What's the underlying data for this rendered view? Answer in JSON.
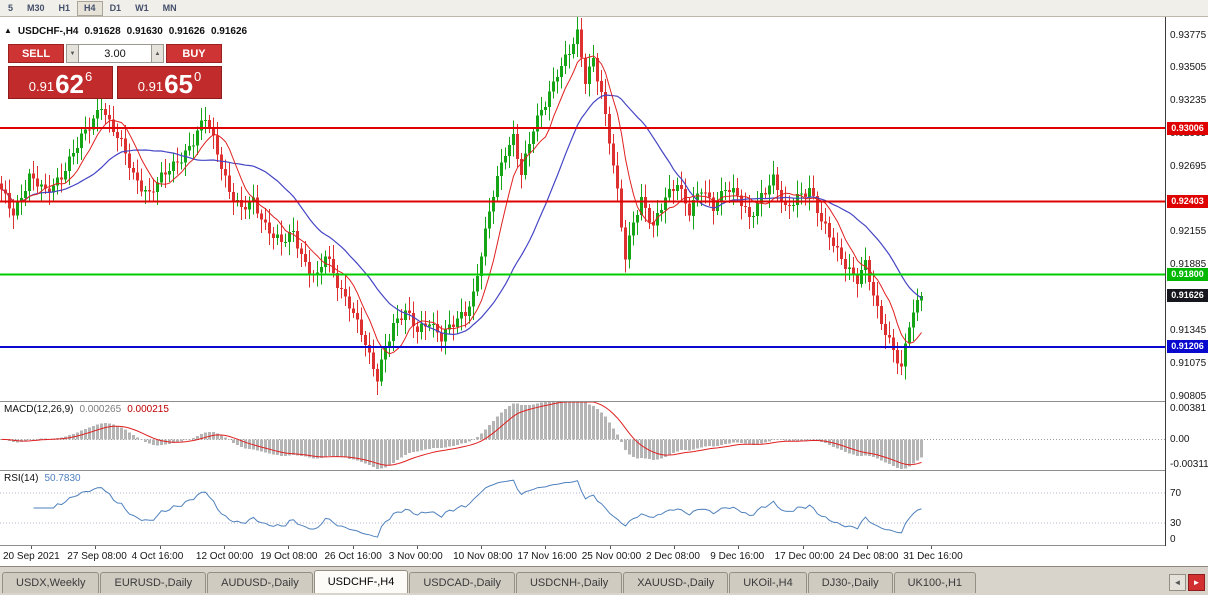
{
  "toolbar": {
    "timeframes": [
      {
        "label": "5",
        "active": false
      },
      {
        "label": "M30",
        "active": false
      },
      {
        "label": "H1",
        "active": false
      },
      {
        "label": "H4",
        "active": true
      },
      {
        "label": "D1",
        "active": false
      },
      {
        "label": "W1",
        "active": false
      },
      {
        "label": "MN",
        "active": false
      }
    ]
  },
  "chart": {
    "title": {
      "marker": "▲",
      "symbol": "USDCHF-,H4",
      "open": "0.91628",
      "high": "0.91630",
      "low": "0.91626",
      "close": "0.91626"
    }
  },
  "trade_panel": {
    "sell_label": "SELL",
    "buy_label": "BUY",
    "lot_size": "3.00",
    "lot_up_icon": "▲",
    "lot_down_icon": "▼",
    "sell_price": {
      "prefix": "0.91",
      "big": "62",
      "sup": "6"
    },
    "buy_price": {
      "prefix": "0.91",
      "big": "65",
      "sup": "0"
    }
  },
  "price_axis": {
    "ticks": [
      "0.93775",
      "0.93505",
      "0.93235",
      "0.92965",
      "0.92695",
      "0.92425",
      "0.92155",
      "0.91885",
      "0.91615",
      "0.91345",
      "0.91075",
      "0.90805"
    ],
    "badges": [
      {
        "text": "0.93006",
        "value": 0.93006,
        "color": "#df0000"
      },
      {
        "text": "0.92403",
        "value": 0.92403,
        "color": "#df0000"
      },
      {
        "text": "0.91800",
        "value": 0.918,
        "color": "#00b800"
      },
      {
        "text": "0.91626",
        "value": 0.91626,
        "color": "#16161e"
      },
      {
        "text": "0.91206",
        "value": 0.91206,
        "color": "#0808cf"
      }
    ]
  },
  "macd_panel": {
    "label": "MACD(12,26,9)",
    "value_main": "0.000265",
    "value_signal": "0.000215",
    "axis": [
      {
        "text": "0.00381",
        "pos": "top"
      },
      {
        "text": "0.00",
        "pos": "zero"
      },
      {
        "text": "-0.00311",
        "pos": "bottom"
      }
    ]
  },
  "rsi_panel": {
    "label": "RSI(14)",
    "value": "50.7830",
    "axis": [
      {
        "text": "70",
        "level": 70
      },
      {
        "text": "30",
        "level": 30
      },
      {
        "text": "0",
        "level": 0
      }
    ]
  },
  "time_axis": {
    "labels": [
      "20 Sep 2021",
      "27 Sep 08:00",
      "4 Oct 16:00",
      "12 Oct 00:00",
      "19 Oct 08:00",
      "26 Oct 16:00",
      "3 Nov 00:00",
      "10 Nov 08:00",
      "17 Nov 16:00",
      "25 Nov 00:00",
      "2 Dec 08:00",
      "9 Dec 16:00",
      "17 Dec 00:00",
      "24 Dec 08:00",
      "31 Dec 16:00"
    ]
  },
  "tabs": {
    "items": [
      {
        "label": "USDX,Weekly",
        "active": false
      },
      {
        "label": "EURUSD-,Daily",
        "active": false
      },
      {
        "label": "AUDUSD-,Daily",
        "active": false
      },
      {
        "label": "USDCHF-,H4",
        "active": true
      },
      {
        "label": "USDCAD-,Daily",
        "active": false
      },
      {
        "label": "USDCNH-,Daily",
        "active": false
      },
      {
        "label": "XAUUSD-,Daily",
        "active": false
      },
      {
        "label": "UKOil-,H4",
        "active": false
      },
      {
        "label": "DJ30-,Daily",
        "active": false
      },
      {
        "label": "UK100-,H1",
        "active": false
      }
    ],
    "scroll_left_icon": "◄",
    "scroll_right_icon": "►"
  },
  "chart_data": {
    "type": "candlestick",
    "symbol": "USDCHF",
    "timeframe": "H4",
    "title": "USDCHF-,H4",
    "candles_count": 231,
    "ylim": [
      0.9076,
      0.9392
    ],
    "current_price": 0.91626,
    "ohlc_display": {
      "open": 0.91628,
      "high": 0.9163,
      "low": 0.91626,
      "close": 0.91626
    },
    "path_anchors": [
      [
        0,
        0.9248
      ],
      [
        3,
        0.9232
      ],
      [
        7,
        0.926
      ],
      [
        11,
        0.9247
      ],
      [
        15,
        0.9263
      ],
      [
        19,
        0.9285
      ],
      [
        23,
        0.9308
      ],
      [
        25,
        0.9322
      ],
      [
        27,
        0.9305
      ],
      [
        30,
        0.9286
      ],
      [
        33,
        0.9262
      ],
      [
        37,
        0.9247
      ],
      [
        41,
        0.9262
      ],
      [
        45,
        0.9278
      ],
      [
        48,
        0.929
      ],
      [
        51,
        0.9308
      ],
      [
        54,
        0.9282
      ],
      [
        57,
        0.925
      ],
      [
        60,
        0.9232
      ],
      [
        63,
        0.924
      ],
      [
        66,
        0.9222
      ],
      [
        70,
        0.9205
      ],
      [
        73,
        0.9213
      ],
      [
        76,
        0.919
      ],
      [
        79,
        0.9178
      ],
      [
        81,
        0.9195
      ],
      [
        84,
        0.9172
      ],
      [
        87,
        0.9158
      ],
      [
        90,
        0.9132
      ],
      [
        92,
        0.911
      ],
      [
        94,
        0.9094
      ],
      [
        96,
        0.9122
      ],
      [
        98,
        0.914
      ],
      [
        101,
        0.9148
      ],
      [
        104,
        0.9133
      ],
      [
        107,
        0.9144
      ],
      [
        110,
        0.9128
      ],
      [
        113,
        0.9138
      ],
      [
        116,
        0.915
      ],
      [
        118,
        0.9165
      ],
      [
        120,
        0.9198
      ],
      [
        123,
        0.9245
      ],
      [
        126,
        0.9282
      ],
      [
        128,
        0.9295
      ],
      [
        130,
        0.9264
      ],
      [
        133,
        0.9298
      ],
      [
        136,
        0.9322
      ],
      [
        139,
        0.9348
      ],
      [
        142,
        0.9362
      ],
      [
        144,
        0.9376
      ],
      [
        146,
        0.934
      ],
      [
        148,
        0.936
      ],
      [
        150,
        0.933
      ],
      [
        152,
        0.929
      ],
      [
        154,
        0.9245
      ],
      [
        156,
        0.9194
      ],
      [
        158,
        0.9226
      ],
      [
        160,
        0.9243
      ],
      [
        163,
        0.9217
      ],
      [
        166,
        0.9243
      ],
      [
        169,
        0.9258
      ],
      [
        172,
        0.9231
      ],
      [
        175,
        0.9249
      ],
      [
        178,
        0.9237
      ],
      [
        181,
        0.9253
      ],
      [
        184,
        0.9243
      ],
      [
        187,
        0.9226
      ],
      [
        190,
        0.9247
      ],
      [
        193,
        0.9258
      ],
      [
        196,
        0.9232
      ],
      [
        199,
        0.9246
      ],
      [
        202,
        0.9251
      ],
      [
        205,
        0.9222
      ],
      [
        208,
        0.9206
      ],
      [
        211,
        0.919
      ],
      [
        214,
        0.9174
      ],
      [
        216,
        0.9187
      ],
      [
        219,
        0.9152
      ],
      [
        221,
        0.9135
      ],
      [
        223,
        0.9118
      ],
      [
        225,
        0.91
      ],
      [
        227,
        0.9138
      ],
      [
        229,
        0.9157
      ],
      [
        230,
        0.91626
      ]
    ],
    "hlines": [
      {
        "price": 0.93006,
        "color": "#df0000",
        "width": 2
      },
      {
        "price": 0.92403,
        "color": "#df0000",
        "width": 2
      },
      {
        "price": 0.918,
        "color": "#00cc00",
        "width": 2
      },
      {
        "price": 0.91206,
        "color": "#0808cf",
        "width": 2
      }
    ],
    "colors": {
      "up": "#16a516",
      "down": "#dd3030",
      "ma_fast": "#e02020",
      "ma_slow": "#4545c5",
      "macd_hist": "#b5b5b5",
      "macd_signal": "#e02020",
      "rsi": "#4f81bd"
    },
    "indicators": {
      "ma_fast_period": 8,
      "ma_slow_period": 24,
      "macd": [
        12,
        26,
        9
      ],
      "rsi_period": 14
    },
    "macd_range": [
      -0.00311,
      0.00381
    ],
    "rsi_levels": [
      70,
      30
    ]
  }
}
